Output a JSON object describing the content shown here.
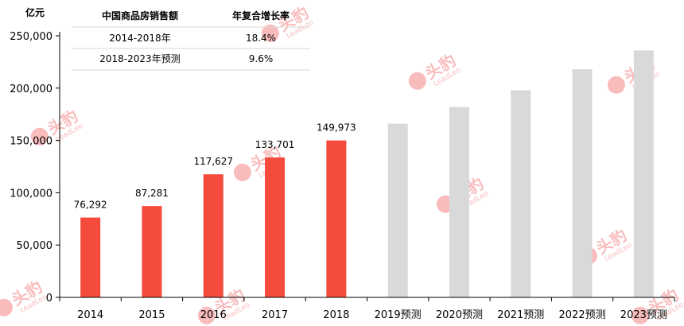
{
  "chart_data": {
    "type": "bar",
    "unit_label": "亿元",
    "categories": [
      "2014",
      "2015",
      "2016",
      "2017",
      "2018",
      "2019预测",
      "2020预测",
      "2021预测",
      "2022预测",
      "2023预测"
    ],
    "values": [
      76292,
      87281,
      117627,
      133701,
      149973,
      166000,
      182000,
      198000,
      218000,
      236000
    ],
    "value_labels": [
      "76,292",
      "87,281",
      "117,627",
      "133,701",
      "149,973",
      "",
      "",
      "",
      "",
      ""
    ],
    "bar_colors": [
      "#f44b3d",
      "#f44b3d",
      "#f44b3d",
      "#f44b3d",
      "#f44b3d",
      "#d9d9d9",
      "#d9d9d9",
      "#d9d9d9",
      "#d9d9d9",
      "#d9d9d9"
    ],
    "y_ticks": [
      "0",
      "50,000",
      "100,000",
      "150,000",
      "200,000",
      "250,000"
    ],
    "y_tick_values": [
      0,
      50000,
      100000,
      150000,
      200000,
      250000
    ],
    "ylim": [
      0,
      250000
    ],
    "grid": false
  },
  "table": {
    "headers": [
      "中国商品房销售额",
      "年复合增长率"
    ],
    "rows": [
      [
        "2014-2018年",
        "18.4%"
      ],
      [
        "2018-2023年预测",
        "9.6%"
      ]
    ]
  },
  "watermark": {
    "text": "头豹",
    "subtext": "LeadLeo",
    "color": "#f7a6a6"
  }
}
